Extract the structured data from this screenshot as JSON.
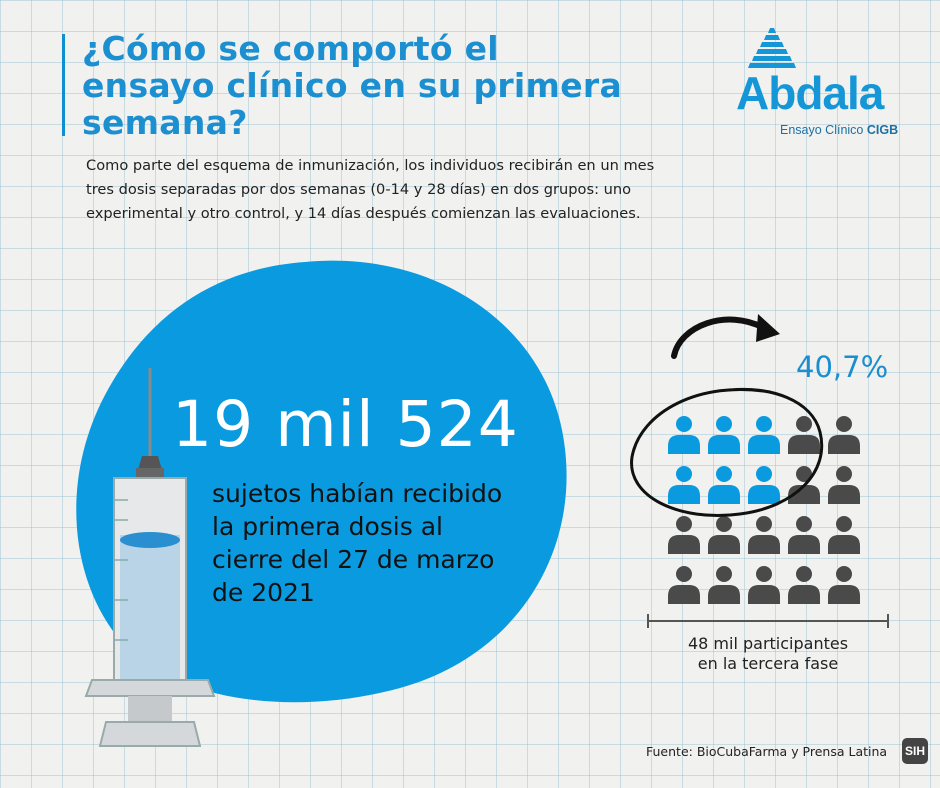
{
  "title": "¿Cómo se comportó el ensayo clínico en su primera semana?",
  "intro": "Como parte del esquema de inmunización, los individuos recibirán en un mes tres dosis separadas por dos semanas (0-14 y 28 días) en dos grupos: uno experimental y otro control, y 14 días después comienzan las evaluaciones.",
  "logo": {
    "word": "Abdala",
    "subtitle_prefix": "Ensayo Clínico",
    "subtitle_bold": "CIGB"
  },
  "stat": {
    "value": "19 mil 524",
    "caption": "sujetos habían recibido la primera dosis al cierre del 27 de marzo de 2021"
  },
  "participants": {
    "percentage_label": "40,7%",
    "caption_line1": "48 mil participantes",
    "caption_line2": "en la tercera fase",
    "grid": {
      "rows": 4,
      "cols": 5,
      "highlighted_rows": 2,
      "highlighted_cols": 3
    }
  },
  "source": "Fuente: BioCubaFarma y Prensa Latina",
  "badge": "SIH",
  "colors": {
    "accent": "#1596d6",
    "blob": "#0a9ae0",
    "icon_gray": "#4a4a4a",
    "text": "#222222"
  }
}
